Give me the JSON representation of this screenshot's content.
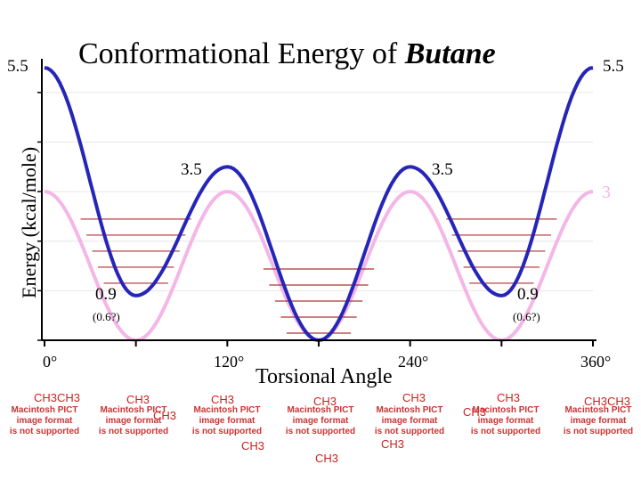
{
  "chart_data": {
    "type": "line",
    "title_prefix": "Conformational Energy of ",
    "title_emph": "Butane",
    "xlabel": "Torsional Angle",
    "ylabel": "Energy (kcal/mole)",
    "xlim": [
      0,
      360
    ],
    "ylim": [
      0,
      5.5
    ],
    "x_ticks": [
      "0°",
      "120°",
      "240°",
      "360°"
    ],
    "series": [
      {
        "color": "#2525b8",
        "x": [
          0,
          60,
          120,
          180,
          240,
          300,
          360
        ],
        "y": [
          5.5,
          0.9,
          3.5,
          0,
          3.5,
          0.9,
          5.5
        ]
      },
      {
        "color": "#f4b6e6",
        "x": [
          0,
          60,
          120,
          180,
          240,
          300,
          360
        ],
        "y": [
          3,
          0,
          3,
          0,
          3,
          0,
          3
        ]
      }
    ],
    "annotations": {
      "left_top": "5.5",
      "right_top": "5.5",
      "peak1": "3.5",
      "peak2": "3.5",
      "pink_right": "3",
      "gauche1": "0.9",
      "gauche1_alt": "(0.6?)",
      "gauche2": "0.9",
      "gauche2_alt": "(0.6?)"
    }
  },
  "molecules": [
    {
      "pict": [
        "Macintosh PICT",
        "image format",
        "is not supported"
      ],
      "ch": [
        "CH3CH3"
      ]
    },
    {
      "pict": [
        "Macintosh PICT",
        "image format",
        "is not supported"
      ],
      "ch": [
        "CH3",
        "CH3"
      ]
    },
    {
      "pict": [
        "Macintosh PICT",
        "image format",
        "is not supported"
      ],
      "ch": [
        "CH3",
        "CH3"
      ]
    },
    {
      "pict": [
        "Macintosh PICT",
        "image format",
        "is not supported"
      ],
      "ch": [
        "CH3",
        "CH3"
      ]
    },
    {
      "pict": [
        "Macintosh PICT",
        "image format",
        "is not supported"
      ],
      "ch": [
        "CH3",
        "CH3"
      ]
    },
    {
      "pict": [
        "Macintosh PICT",
        "image format",
        "is not supported"
      ],
      "ch": [
        "CH3",
        "CH3"
      ]
    },
    {
      "pict": [
        "Macintosh PICT",
        "image format",
        "is not supported"
      ],
      "ch": [
        "CH3CH3"
      ]
    }
  ],
  "colors": {
    "axis": "#000000",
    "grid": "#e6e6e6",
    "levels": "#b03030"
  }
}
